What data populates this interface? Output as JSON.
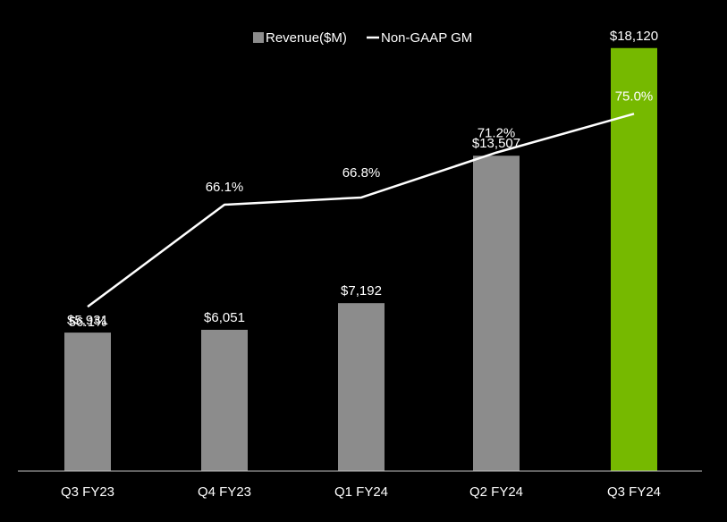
{
  "colors": {
    "background": "#000000",
    "bar": "#8c8c8c",
    "highlight_bar": "#76b900",
    "line": "#ffffff",
    "axis": "#bfbfbf",
    "text": "#ffffff"
  },
  "chart_data": {
    "type": "bar",
    "title": "",
    "xlabel": "",
    "ylabel": "",
    "categories": [
      "Q3 FY23",
      "Q4 FY23",
      "Q1 FY24",
      "Q2 FY24",
      "Q3 FY24"
    ],
    "highlight_index": 4,
    "ylim": [
      0,
      18800
    ],
    "gm_ylim": [
      40,
      83
    ],
    "legend_position": "top-center",
    "series": [
      {
        "name": "Revenue($M)",
        "type": "bar",
        "values": [
          5931,
          6051,
          7192,
          13507,
          18120
        ],
        "labels": [
          "$5,931",
          "$6,051",
          "$7,192",
          "$13,507",
          "$18,120"
        ]
      },
      {
        "name": "Non-GAAP GM",
        "type": "line",
        "values": [
          56.1,
          66.1,
          66.8,
          71.2,
          75.0
        ],
        "labels": [
          "56.1%",
          "66.1%",
          "66.8%",
          "71.2%",
          "75.0%"
        ]
      }
    ]
  }
}
